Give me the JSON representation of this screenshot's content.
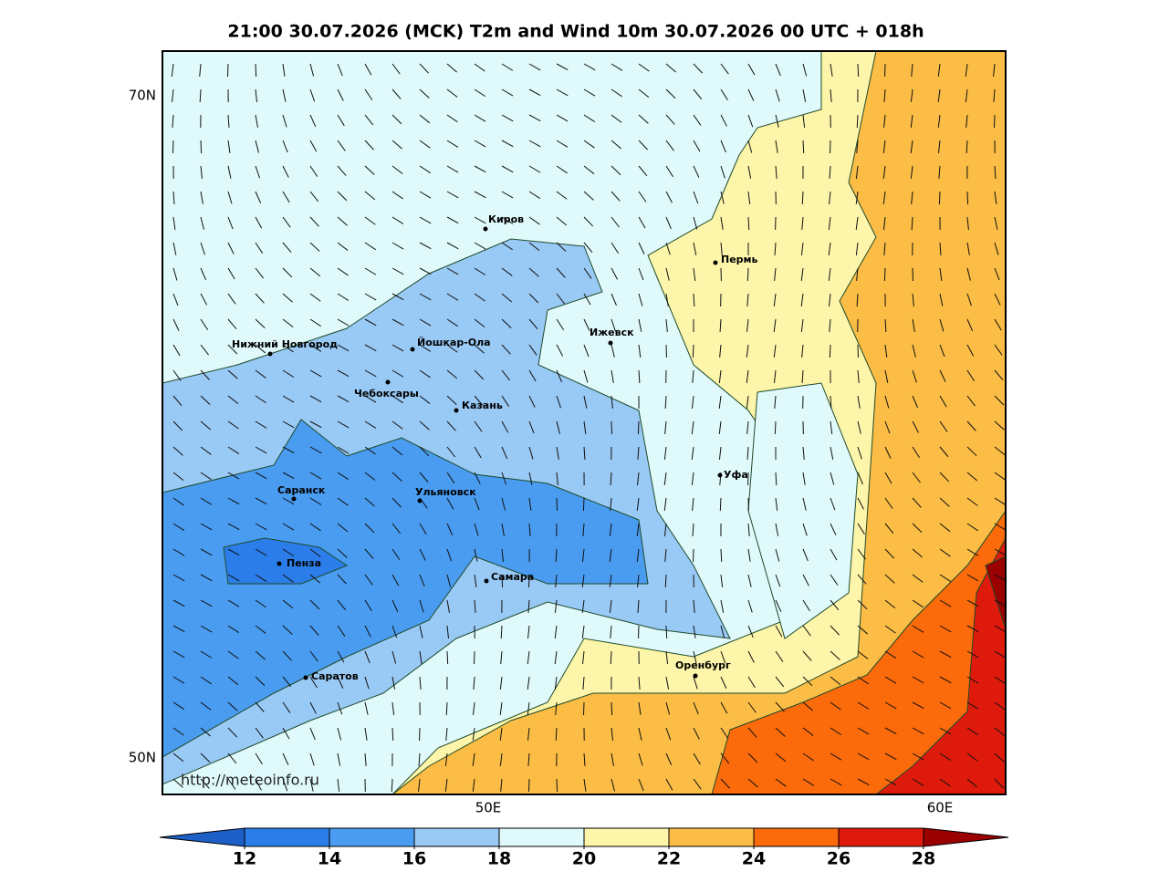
{
  "title": "21:00 30.07.2026 (MCK) T2m and Wind 10m 30.07.2026 00 UTC + 018h",
  "map": {
    "lat_labels": [
      "70N",
      "50N"
    ],
    "lon_labels": [
      "50E",
      "60E"
    ],
    "cities": [
      "Киров",
      "Пермь",
      "Нижний Новгород",
      "Йошкар-Ола",
      "Ижевск",
      "Чебоксары",
      "Казань",
      "Уфа",
      "Саранск",
      "Ульяновск",
      "Пенза",
      "Самара",
      "Оренбург",
      "Саратов"
    ],
    "watermark": "http://meteoinfo.ru"
  },
  "colorbar": {
    "ticks": [
      12,
      14,
      16,
      18,
      20,
      22,
      24,
      26,
      28
    ],
    "colors": [
      "#1c5fc6",
      "#2b7de9",
      "#4a9cf0",
      "#99c9f5",
      "#e0fafc",
      "#fdf5a9",
      "#fbbd45",
      "#fb6a0b",
      "#dd1a0c",
      "#9a0000"
    ]
  }
}
